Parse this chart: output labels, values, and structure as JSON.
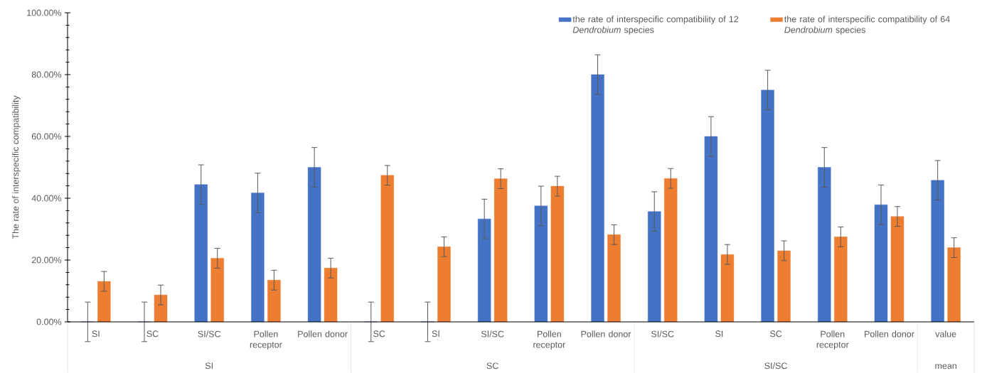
{
  "chart_data": {
    "type": "bar",
    "ylabel": "The rate of interspecific compatibility",
    "categories": [
      "SI",
      "SC",
      "SI/SC",
      "Pollen receptor",
      "Pollen donor",
      "SC",
      "SI",
      "SI/SC",
      "Pollen receptor",
      "Pollen donor",
      "SI/SC",
      "SI",
      "SC",
      "Pollen receptor",
      "Pollen donor",
      "value"
    ],
    "series": [
      {
        "name": "the rate of interspecific compatibility of 12 *Dendrobium* species",
        "color": "#4472c4",
        "values": [
          0,
          0,
          44.4,
          41.7,
          50,
          0,
          0,
          33.3,
          37.5,
          80,
          35.7,
          60,
          75,
          50,
          37.9,
          45.8
        ],
        "errors": [
          6.4,
          6.4,
          6.4,
          6.4,
          6.4,
          6.4,
          6.4,
          6.4,
          6.4,
          6.4,
          6.4,
          6.4,
          6.4,
          6.4,
          6.4,
          6.4
        ]
      },
      {
        "name": "the rate of interspecific compatibility of 64 *Dendrobium* species",
        "color": "#ed7d31",
        "values": [
          13.1,
          8.7,
          20.6,
          13.5,
          17.4,
          47.4,
          24.3,
          46.3,
          43.9,
          28.2,
          46.4,
          21.8,
          23.0,
          27.5,
          34.1,
          24.0
        ],
        "errors": [
          3.2,
          3.2,
          3.2,
          3.2,
          3.2,
          3.2,
          3.2,
          3.2,
          3.2,
          3.2,
          3.2,
          3.2,
          3.2,
          3.2,
          3.2,
          3.2
        ]
      }
    ],
    "ylim": [
      0,
      100
    ],
    "yticks": [
      {
        "value": 0,
        "label": "0.00%"
      },
      {
        "value": 20,
        "label": "20.00%"
      },
      {
        "value": 40,
        "label": "40.00%"
      },
      {
        "value": 60,
        "label": "60.00%"
      },
      {
        "value": 80,
        "label": "80.00%"
      },
      {
        "value": 100,
        "label": "100.00%"
      }
    ],
    "legend": "top right",
    "annotations": [
      "SI",
      "SC",
      "SI/SC",
      "mean"
    ]
  }
}
